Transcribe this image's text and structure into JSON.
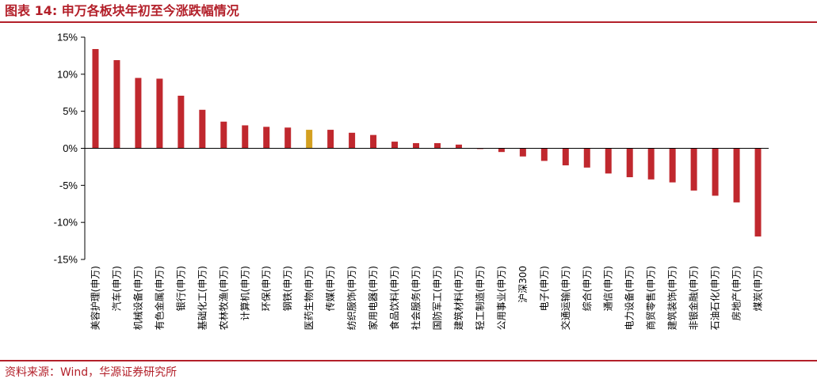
{
  "title": "图表 14: 申万各板块年初至今涨跌幅情况",
  "source": "资料来源：Wind，华源证券研究所",
  "colors": {
    "bar": "#c0282e",
    "highlight": "#d4a020",
    "brand": "#b3202a"
  },
  "chart_data": {
    "type": "bar",
    "title": "图表 14: 申万各板块年初至今涨跌幅情况",
    "xlabel": "",
    "ylabel": "",
    "ylim": [
      -15,
      15
    ],
    "yticks": [
      15,
      10,
      5,
      0,
      -5,
      -10,
      -15
    ],
    "ytick_labels": [
      "15%",
      "10%",
      "5%",
      "0%",
      "-5%",
      "-10%",
      "-15%"
    ],
    "grid": false,
    "legend": "none",
    "highlight_category": "医药生物(申万)",
    "categories": [
      "美容护理(申万)",
      "汽车(申万)",
      "机械设备(申万)",
      "有色金属(申万)",
      "银行(申万)",
      "基础化工(申万)",
      "农林牧渔(申万)",
      "计算机(申万)",
      "环保(申万)",
      "钢铁(申万)",
      "医药生物(申万)",
      "传媒(申万)",
      "纺织服饰(申万)",
      "家用电器(申万)",
      "食品饮料(申万)",
      "社会服务(申万)",
      "国防军工(申万)",
      "建筑材料(申万)",
      "轻工制造(申万)",
      "公用事业(申万)",
      "沪深300",
      "电子(申万)",
      "交通运输(申万)",
      "综合(申万)",
      "通信(申万)",
      "电力设备(申万)",
      "商贸零售(申万)",
      "建筑装饰(申万)",
      "非银金融(申万)",
      "石油石化(申万)",
      "房地产(申万)",
      "煤炭(申万)"
    ],
    "values": [
      13.4,
      11.9,
      9.5,
      9.4,
      7.1,
      5.2,
      3.6,
      3.1,
      2.9,
      2.8,
      2.5,
      2.5,
      2.1,
      1.8,
      0.9,
      0.7,
      0.7,
      0.5,
      -0.1,
      -0.5,
      -1.1,
      -1.7,
      -2.3,
      -2.6,
      -3.4,
      -3.9,
      -4.2,
      -4.6,
      -5.7,
      -6.4,
      -7.3,
      -11.9
    ]
  }
}
